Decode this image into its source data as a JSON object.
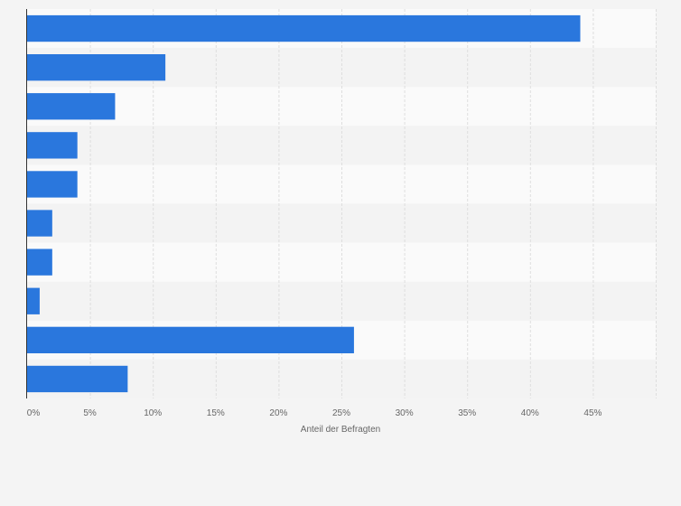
{
  "chart_data": {
    "type": "bar",
    "orientation": "horizontal",
    "categories": [
      "",
      "",
      "",
      "",
      "",
      "",
      "",
      "",
      "",
      ""
    ],
    "values": [
      44,
      11,
      7,
      4,
      4,
      2,
      2,
      1,
      26,
      8
    ],
    "xlabel": "Anteil der Befragten",
    "ylabel": "",
    "xlim": [
      0,
      50
    ],
    "xticks": [
      0,
      5,
      10,
      15,
      20,
      25,
      30,
      35,
      40,
      45
    ],
    "tick_labels": [
      "0%",
      "5%",
      "10%",
      "15%",
      "20%",
      "25%",
      "30%",
      "35%",
      "40%",
      "45%"
    ],
    "grid": true,
    "legend": "none"
  },
  "colors": {
    "bar": "#2a77dd",
    "band_light": "#fafafa",
    "band_dark": "#f3f3f3",
    "grid": "#dedede",
    "axis": "#333333"
  }
}
